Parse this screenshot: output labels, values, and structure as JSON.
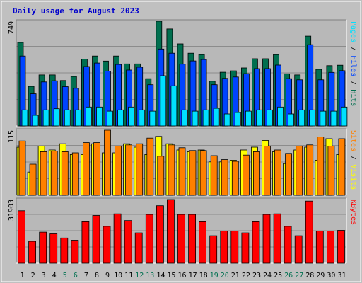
{
  "title": "Daily usage for August 2023",
  "colors": {
    "background": "#c0c0c0",
    "plot_bg": "#b8b8b8",
    "title": "#0000cc",
    "hits": "#006f4f",
    "files": "#0044ff",
    "pages": "#00e0ff",
    "visits": "#ffff00",
    "sites": "#ff8000",
    "kbytes": "#ff0000",
    "weekend_label": "#007050",
    "day_label": "#000000"
  },
  "chart_data": [
    {
      "type": "bar",
      "panel": "hits_files_pages",
      "ymax_label": "749",
      "categories": [
        "1",
        "2",
        "3",
        "4",
        "5",
        "6",
        "7",
        "8",
        "9",
        "10",
        "11",
        "12",
        "13",
        "14",
        "15",
        "16",
        "17",
        "18",
        "19",
        "20",
        "21",
        "22",
        "23",
        "24",
        "25",
        "26",
        "27",
        "28",
        "29",
        "30",
        "31"
      ],
      "weekend_days": [
        "5",
        "6",
        "12",
        "13",
        "19",
        "20",
        "26",
        "27"
      ],
      "ylim": [
        0,
        749
      ],
      "side_label": [
        {
          "text": "Pages",
          "color": "#00e0ff"
        },
        {
          "text": " / ",
          "color": "#000000"
        },
        {
          "text": "Files",
          "color": "#0044ff"
        },
        {
          "text": " / ",
          "color": "#000000"
        },
        {
          "text": "Hits",
          "color": "#006f4f"
        }
      ],
      "series": [
        {
          "name": "Hits",
          "values": [
            597,
            283,
            365,
            365,
            325,
            354,
            479,
            500,
            464,
            500,
            444,
            444,
            338,
            749,
            694,
            587,
            520,
            510,
            320,
            384,
            394,
            415,
            481,
            481,
            510,
            373,
            365,
            642,
            405,
            431,
            434
          ]
        },
        {
          "name": "Files",
          "values": [
            500,
            230,
            315,
            323,
            281,
            269,
            425,
            450,
            392,
            440,
            400,
            420,
            295,
            550,
            520,
            442,
            465,
            475,
            295,
            340,
            350,
            374,
            410,
            410,
            435,
            338,
            330,
            581,
            330,
            383,
            395
          ]
        },
        {
          "name": "Pages",
          "values": [
            115,
            76,
            115,
            123,
            115,
            115,
            135,
            135,
            106,
            115,
            135,
            115,
            106,
            359,
            287,
            115,
            106,
            115,
            126,
            86,
            96,
            106,
            115,
            115,
            135,
            86,
            115,
            115,
            106,
            106,
            135
          ]
        }
      ]
    },
    {
      "type": "bar",
      "panel": "visits_sites",
      "ymax_label": "115",
      "categories": [
        "1",
        "2",
        "3",
        "4",
        "5",
        "6",
        "7",
        "8",
        "9",
        "10",
        "11",
        "12",
        "13",
        "14",
        "15",
        "16",
        "17",
        "18",
        "19",
        "20",
        "21",
        "22",
        "23",
        "24",
        "25",
        "26",
        "27",
        "28",
        "29",
        "30",
        "31"
      ],
      "ylim": [
        0,
        115
      ],
      "side_label": [
        {
          "text": "Sites",
          "color": "#ff8000"
        },
        {
          "text": " / ",
          "color": "#000000"
        },
        {
          "text": "Visits",
          "color": "#ffff00"
        }
      ],
      "series": [
        {
          "name": "Visits",
          "values": [
            85,
            41,
            87,
            80,
            91,
            72,
            72,
            91,
            75,
            75,
            91,
            85,
            72,
            104,
            91,
            80,
            77,
            80,
            59,
            59,
            62,
            80,
            85,
            97,
            77,
            56,
            80,
            85,
            62,
            100,
            72
          ]
        },
        {
          "name": "Sites",
          "values": [
            96,
            55,
            77,
            78,
            77,
            75,
            93,
            93,
            115,
            87,
            89,
            91,
            101,
            69,
            89,
            84,
            79,
            79,
            70,
            63,
            60,
            71,
            77,
            87,
            80,
            74,
            87,
            89,
            103,
            87,
            100
          ]
        }
      ]
    },
    {
      "type": "bar",
      "panel": "kbytes",
      "ymax_label": "31903",
      "categories": [
        "1",
        "2",
        "3",
        "4",
        "5",
        "6",
        "7",
        "8",
        "9",
        "10",
        "11",
        "12",
        "13",
        "14",
        "15",
        "16",
        "17",
        "18",
        "19",
        "20",
        "21",
        "22",
        "23",
        "24",
        "25",
        "26",
        "27",
        "28",
        "29",
        "30",
        "31"
      ],
      "ylim": [
        0,
        31903
      ],
      "side_label": [
        {
          "text": "KBytes",
          "color": "#ff0000"
        }
      ],
      "series": [
        {
          "name": "KBytes",
          "values": [
            26316,
            10956,
            15569,
            14707,
            12662,
            11508,
            20779,
            23924,
            18468,
            24736,
            21358,
            15211,
            24422,
            28832,
            31903,
            24422,
            24422,
            20779,
            13785,
            16131,
            16131,
            15211,
            20779,
            24423,
            24736,
            18468,
            13785,
            31127,
            16131,
            16131,
            16473
          ]
        }
      ]
    }
  ]
}
